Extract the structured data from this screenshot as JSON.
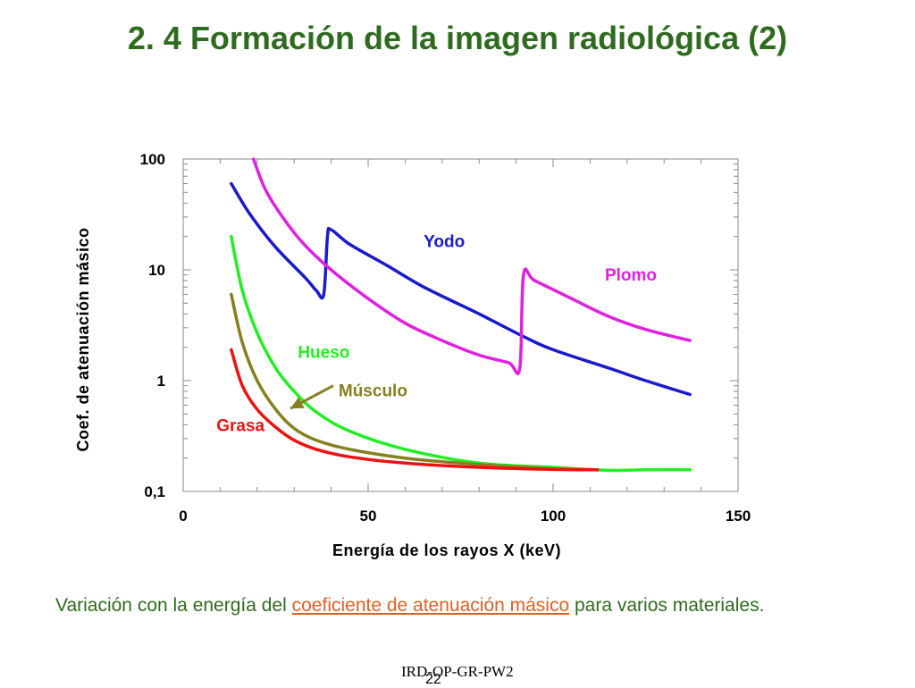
{
  "slide": {
    "title": "2. 4 Formación de la imagen radiológica (2)",
    "caption_pre": "Variación con la energía del ",
    "caption_highlight": "coeficiente de atenuación másico",
    "caption_post": " para varios materiales.",
    "footer_code": "IRD-OP-GR-PW2",
    "page_number": "22",
    "colors": {
      "title": "#2e6b1f",
      "caption": "#2e6b1f",
      "highlight": "#e06020"
    }
  },
  "chart_data": {
    "type": "line",
    "title": "",
    "xlabel": "Energía de los rayos X (keV)",
    "ylabel": "Coef. de atenuación másico",
    "xlim": [
      0,
      150
    ],
    "ylim": [
      0.1,
      100
    ],
    "yscale": "log",
    "x_ticks": [
      "0",
      "50",
      "100",
      "150"
    ],
    "y_ticks": [
      "0,1",
      "1",
      "10",
      "100"
    ],
    "grid": false,
    "series": [
      {
        "name": "Yodo",
        "color": "#1a1acc",
        "x": [
          13,
          18,
          25,
          33,
          36,
          38,
          39,
          40,
          45,
          55,
          65,
          80,
          92,
          100,
          115,
          125,
          137
        ],
        "y": [
          60,
          32,
          16,
          8.5,
          6.5,
          6,
          20,
          23,
          17,
          11,
          7,
          4,
          2.5,
          1.9,
          1.3,
          1.0,
          0.75
        ]
      },
      {
        "name": "Plomo",
        "color": "#e020e0",
        "x": [
          19,
          22,
          26,
          32,
          40,
          50,
          60,
          70,
          80,
          88,
          91,
          92,
          95,
          105,
          115,
          125,
          137
        ],
        "y": [
          100,
          55,
          33,
          18,
          10,
          5.5,
          3.3,
          2.3,
          1.7,
          1.45,
          1.3,
          9,
          8,
          5.5,
          3.8,
          2.9,
          2.3
        ]
      },
      {
        "name": "Hueso",
        "color": "#22ee22",
        "x": [
          13,
          16,
          20,
          25,
          30,
          36,
          45,
          60,
          80,
          100,
          115,
          125,
          137
        ],
        "y": [
          20,
          6.5,
          2.7,
          1.3,
          0.8,
          0.52,
          0.35,
          0.24,
          0.18,
          0.165,
          0.155,
          0.157,
          0.157
        ]
      },
      {
        "name": "Músculo",
        "color": "#858020",
        "x": [
          13,
          16,
          20,
          25,
          30,
          36,
          45,
          60,
          80,
          100,
          112
        ],
        "y": [
          6,
          2.2,
          1.0,
          0.55,
          0.37,
          0.29,
          0.24,
          0.2,
          0.175,
          0.16,
          0.157
        ]
      },
      {
        "name": "Grasa",
        "color": "#ee1111",
        "x": [
          13,
          16,
          20,
          25,
          30,
          36,
          45,
          60,
          80,
          100,
          112
        ],
        "y": [
          1.9,
          0.9,
          0.55,
          0.38,
          0.29,
          0.24,
          0.205,
          0.18,
          0.165,
          0.158,
          0.157
        ]
      }
    ],
    "annotations": [
      {
        "text": "Yodo",
        "color": "#1a1acc",
        "x": 65,
        "y": 16
      },
      {
        "text": "Plomo",
        "color": "#e020e0",
        "x": 114,
        "y": 8
      },
      {
        "text": "Hueso",
        "color": "#22ee22",
        "x": 31,
        "y": 1.6
      },
      {
        "text": "Músculo",
        "color": "#858020",
        "x": 42,
        "y": 0.72,
        "arrow_to": {
          "x": 29,
          "y": 0.56
        }
      },
      {
        "text": "Grasa",
        "color": "#ee1111",
        "x": 9,
        "y": 0.35
      }
    ]
  }
}
